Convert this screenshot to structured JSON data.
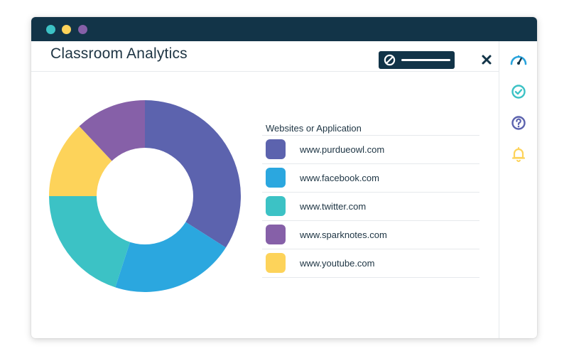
{
  "window": {
    "title_dots": [
      {
        "name": "close-dot",
        "color": "#3cc2c5"
      },
      {
        "name": "minimize-dot",
        "color": "#fdd35a"
      },
      {
        "name": "maximize-dot",
        "color": "#8660a8"
      }
    ]
  },
  "header": {
    "title": "Classroom Analytics",
    "block_toggle_icon": "block-icon",
    "close_icon": "close-icon"
  },
  "sidebar": {
    "items": [
      {
        "icon": "gauge-icon",
        "color": "#28a3dc"
      },
      {
        "icon": "check-circle-icon",
        "color": "#3cc2c5"
      },
      {
        "icon": "help-circle-icon",
        "color": "#5c63ae"
      },
      {
        "icon": "bell-icon",
        "color": "#fdd35a"
      }
    ]
  },
  "legend": {
    "header": "Websites or Application",
    "items": [
      {
        "label": "www.purdueowl.com",
        "color": "#5c63ae"
      },
      {
        "label": "www.facebook.com",
        "color": "#2ba7df"
      },
      {
        "label": "www.twitter.com",
        "color": "#3cc2c5"
      },
      {
        "label": "www.sparknotes.com",
        "color": "#8660a8"
      },
      {
        "label": "www.youtube.com",
        "color": "#fdd35a"
      }
    ]
  },
  "chart_data": {
    "type": "pie",
    "donut": true,
    "title": "",
    "categories": [
      "www.purdueowl.com",
      "www.facebook.com",
      "www.twitter.com",
      "www.sparknotes.com",
      "www.youtube.com"
    ],
    "values": [
      34,
      21,
      20,
      12,
      13
    ],
    "colors": [
      "#5c63ae",
      "#2ba7df",
      "#3cc2c5",
      "#fdd35a",
      "#8660a8"
    ],
    "draw_order": [
      "www.purdueowl.com",
      "www.facebook.com",
      "www.twitter.com",
      "www.youtube.com",
      "www.sparknotes.com"
    ],
    "start_angle_deg": 270,
    "legend_position": "right"
  }
}
